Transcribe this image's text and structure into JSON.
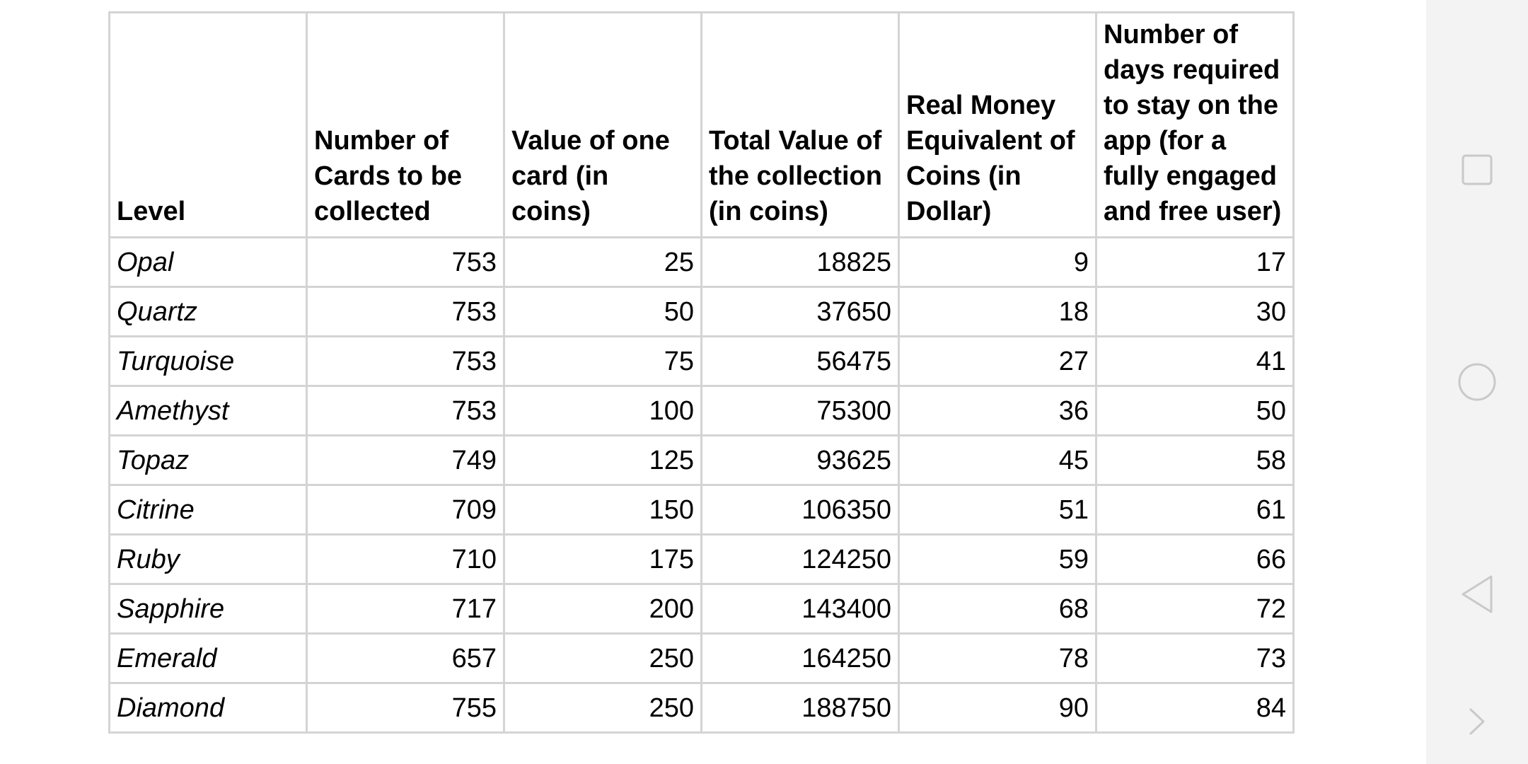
{
  "table": {
    "headers": [
      "Level",
      "Number of Cards to be collected",
      "Value of one card (in coins)",
      "Total Value of the collection (in coins)",
      "Real Money Equivalent of Coins (in Dollar)",
      "Number of days required to stay on the app (for a fully engaged and free user)"
    ],
    "rows": [
      [
        "Opal",
        "753",
        "25",
        "18825",
        "9",
        "17"
      ],
      [
        "Quartz",
        "753",
        "50",
        "37650",
        "18",
        "30"
      ],
      [
        "Turquoise",
        "753",
        "75",
        "56475",
        "27",
        "41"
      ],
      [
        "Amethyst",
        "753",
        "100",
        "75300",
        "36",
        "50"
      ],
      [
        "Topaz",
        "749",
        "125",
        "93625",
        "45",
        "58"
      ],
      [
        "Citrine",
        "709",
        "150",
        "106350",
        "51",
        "61"
      ],
      [
        "Ruby",
        "710",
        "175",
        "124250",
        "59",
        "66"
      ],
      [
        "Sapphire",
        "717",
        "200",
        "143400",
        "68",
        "72"
      ],
      [
        "Emerald",
        "657",
        "250",
        "164250",
        "78",
        "73"
      ],
      [
        "Diamond",
        "755",
        "250",
        "188750",
        "90",
        "84"
      ]
    ]
  },
  "nav": {
    "buttons": [
      "recents-icon",
      "home-icon",
      "back-icon",
      "forward-chevron-icon"
    ]
  },
  "colors": {
    "grid_line": "#d4d4d4",
    "nav_background": "#f3f3f3",
    "nav_icon": "#c9c9c9"
  }
}
